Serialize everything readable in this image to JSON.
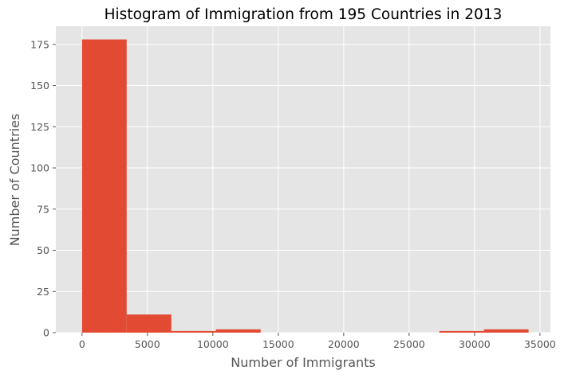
{
  "chart_data": {
    "type": "bar",
    "title": "Histogram of Immigration from 195 Countries in 2013",
    "xlabel": "Number of Immigrants",
    "ylabel": "Number of Countries",
    "bin_edges": [
      0,
      3412.9,
      6825.8,
      10238.7,
      13651.6,
      17064.5,
      20477.4,
      23890.3,
      27303.2,
      30716.1,
      34129
    ],
    "values": [
      178,
      11,
      1,
      2,
      0,
      0,
      0,
      0,
      1,
      2
    ],
    "xlim": [
      -2000,
      35800
    ],
    "ylim": [
      0,
      186
    ],
    "xticks": [
      0,
      5000,
      10000,
      15000,
      20000,
      25000,
      30000,
      35000
    ],
    "yticks": [
      0,
      25,
      50,
      75,
      100,
      125,
      150,
      175
    ],
    "grid": true,
    "colors": {
      "bar": "#e24a33",
      "background": "#e5e5e5",
      "grid": "#ffffff",
      "text": "#555555",
      "title": "#000000"
    }
  }
}
